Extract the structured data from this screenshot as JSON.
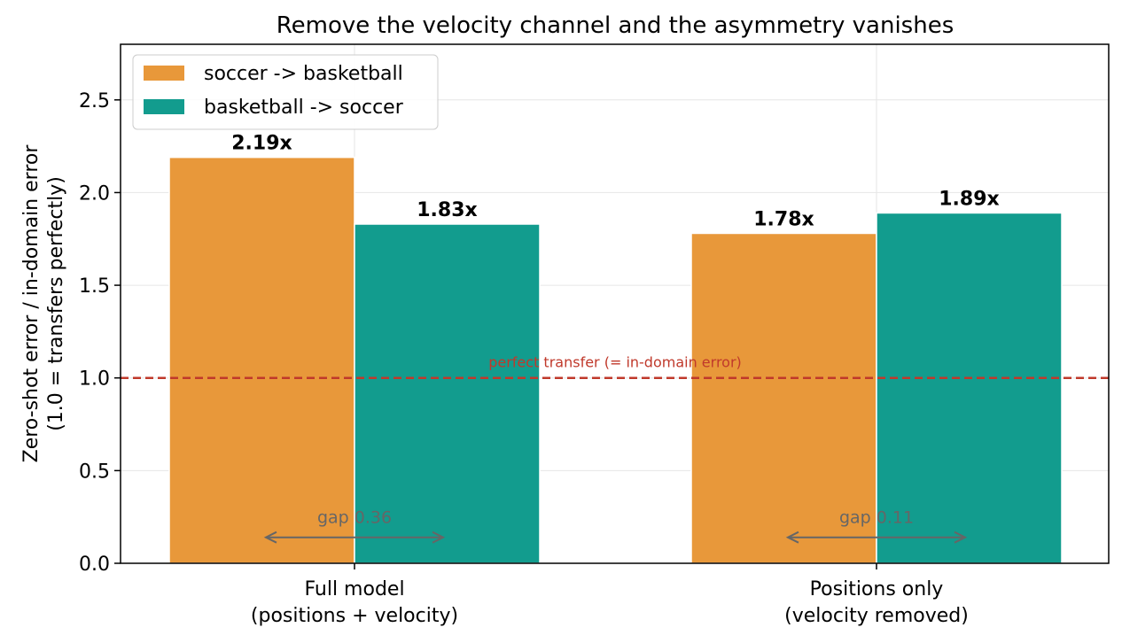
{
  "chart_data": {
    "type": "bar",
    "title": "Remove the velocity channel and the asymmetry vanishes",
    "ylabel_lines": [
      "Zero-shot error / in-domain error",
      "(1.0 = transfers perfectly)"
    ],
    "xlabel": "",
    "ylim": [
      0,
      2.8
    ],
    "yticks": [
      "0.0",
      "0.5",
      "1.0",
      "1.5",
      "2.0",
      "2.5"
    ],
    "grid": true,
    "legend_position": "top-left",
    "categories": [
      [
        "Full model",
        "(positions + velocity)"
      ],
      [
        "Positions only",
        "(velocity removed)"
      ]
    ],
    "series": [
      {
        "name": "soccer -> basketball",
        "color": "#e8983a",
        "values": [
          2.19,
          1.78
        ],
        "labels": [
          "2.19x",
          "1.78x"
        ]
      },
      {
        "name": "basketball -> soccer",
        "color": "#129c8e",
        "values": [
          1.83,
          1.89
        ],
        "labels": [
          "1.83x",
          "1.89x"
        ]
      }
    ],
    "reference_line": {
      "value": 1.0,
      "label": "perfect transfer (= in-domain error)",
      "color": "#c0392b"
    },
    "gap_annotations": [
      {
        "label": "gap 0.36",
        "value": 0.14
      },
      {
        "label": "gap 0.11",
        "value": 0.14
      }
    ]
  }
}
